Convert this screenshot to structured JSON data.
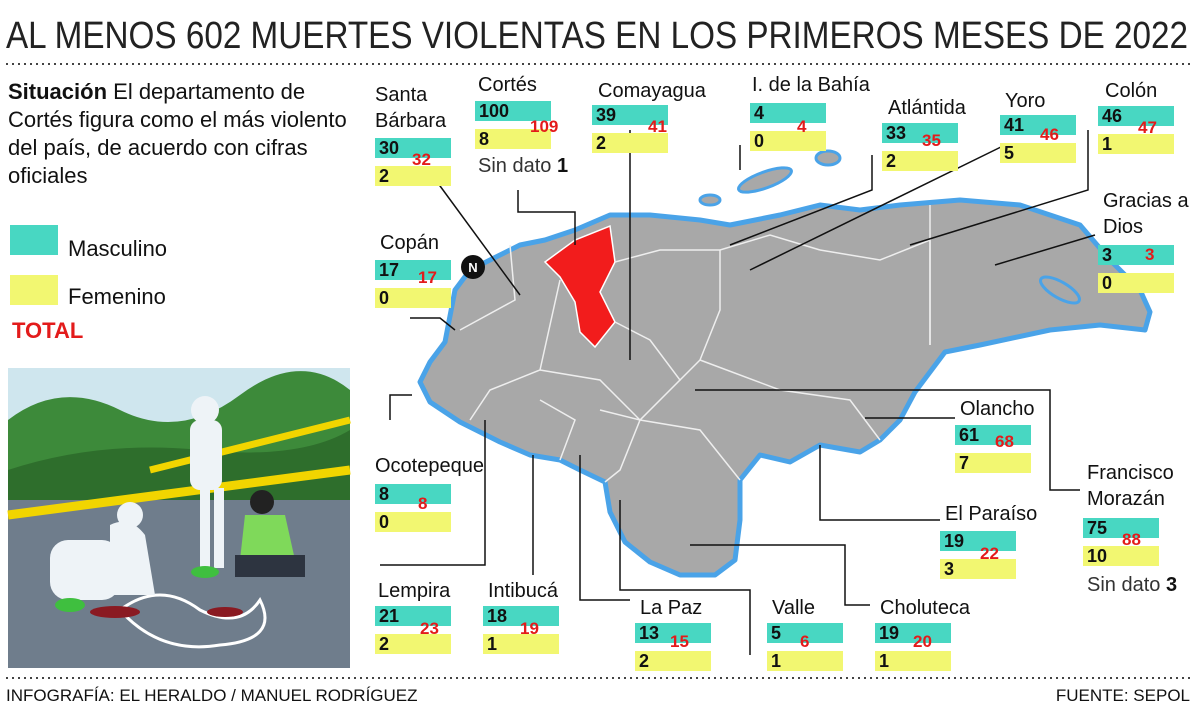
{
  "title": "AL MENOS 602 MUERTES VIOLENTAS EN LOS PRIMEROS MESES DE 2022",
  "intro": {
    "lead": "Situación",
    "text": "El departamento de Cortés figura como el más violento del país, de acuerdo con cifras oficiales"
  },
  "legend": {
    "male": "Masculino",
    "female": "Femenino",
    "total": "TOTAL"
  },
  "sin_dato_label": "Sin dato",
  "departments": [
    {
      "name": "Santa Bárbara",
      "male": 30,
      "female": 2,
      "total": 32
    },
    {
      "name": "Cortés",
      "male": 100,
      "female": 8,
      "total": 109,
      "sin_dato": 1
    },
    {
      "name": "Comayagua",
      "male": 39,
      "female": 2,
      "total": 41
    },
    {
      "name": "I. de la Bahía",
      "male": 4,
      "female": 0,
      "total": 4
    },
    {
      "name": "Atlántida",
      "male": 33,
      "female": 2,
      "total": 35
    },
    {
      "name": "Yoro",
      "male": 41,
      "female": 5,
      "total": 46
    },
    {
      "name": "Colón",
      "male": 46,
      "female": 1,
      "total": 47
    },
    {
      "name": "Gracias a Dios",
      "male": 3,
      "female": 0,
      "total": 3
    },
    {
      "name": "Copán",
      "male": 17,
      "female": 0,
      "total": 17
    },
    {
      "name": "Ocotepeque",
      "male": 8,
      "female": 0,
      "total": 8
    },
    {
      "name": "Olancho",
      "male": 61,
      "female": 7,
      "total": 68
    },
    {
      "name": "Francisco Morazán",
      "male": 75,
      "female": 10,
      "total": 88,
      "sin_dato": 3
    },
    {
      "name": "El Paraíso",
      "male": 19,
      "female": 3,
      "total": 22
    },
    {
      "name": "Lempira",
      "male": 21,
      "female": 2,
      "total": 23
    },
    {
      "name": "Intibucá",
      "male": 18,
      "female": 1,
      "total": 19
    },
    {
      "name": "La Paz",
      "male": 13,
      "female": 2,
      "total": 15
    },
    {
      "name": "Valle",
      "male": 5,
      "female": 1,
      "total": 6
    },
    {
      "name": "Choluteca",
      "male": 19,
      "female": 1,
      "total": 20
    }
  ],
  "footer": {
    "credit": "INFOGRAFÍA: EL HERALDO / MANUEL RODRÍGUEZ",
    "source": "FUENTE: SEPOL"
  }
}
